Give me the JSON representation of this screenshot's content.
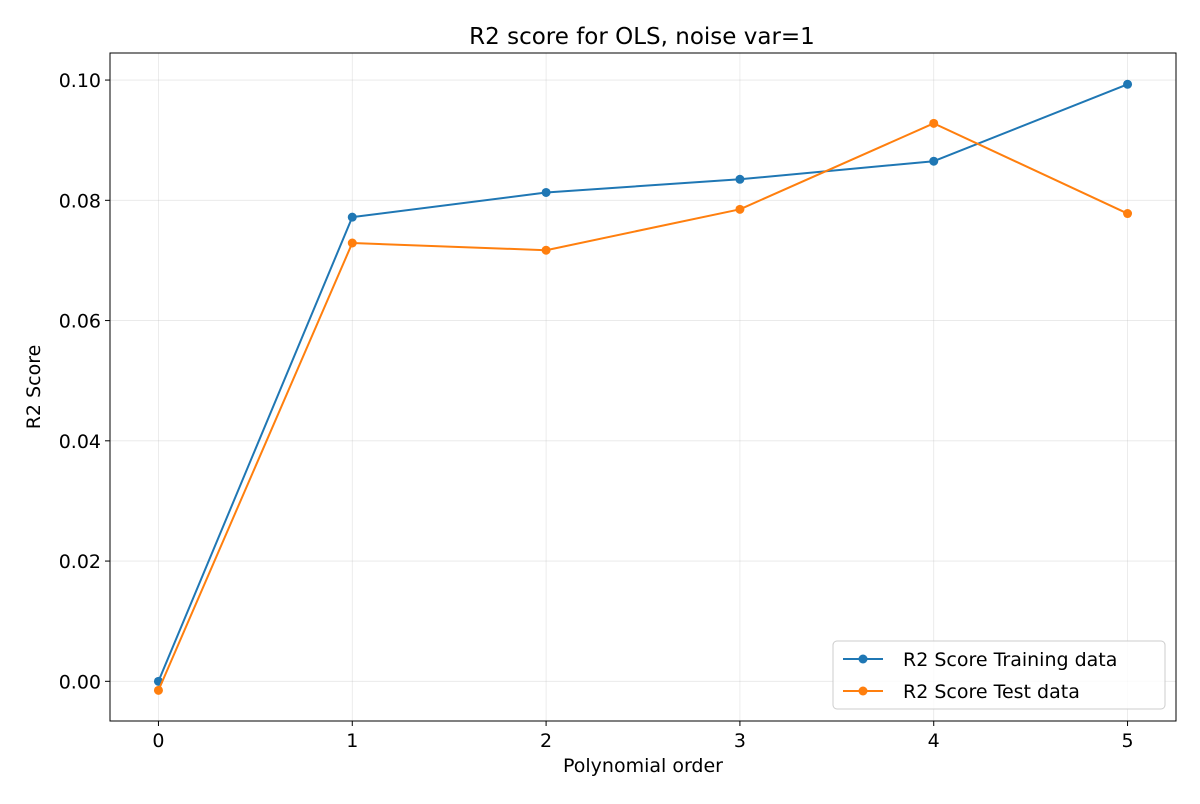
{
  "chart_data": {
    "type": "line",
    "title": "R2 score for OLS, noise var=1",
    "xlabel": "Polynomial order",
    "ylabel": "R2 Score",
    "x": [
      0,
      1,
      2,
      3,
      4,
      5
    ],
    "xlim": [
      -0.25,
      5.25
    ],
    "ylim": [
      -0.0066,
      0.1045
    ],
    "xticks": [
      "0",
      "1",
      "2",
      "3",
      "4",
      "5"
    ],
    "yticks": [
      "0.00",
      "0.02",
      "0.04",
      "0.06",
      "0.08",
      "0.10"
    ],
    "ytick_values": [
      0.0,
      0.02,
      0.04,
      0.06,
      0.08,
      0.1
    ],
    "grid": true,
    "legend_position": "lower-right",
    "series": [
      {
        "name": "R2 Score Training data",
        "color": "#1f77b4",
        "marker": "circle",
        "values": [
          0.0,
          0.0772,
          0.0813,
          0.0835,
          0.0865,
          0.0993
        ]
      },
      {
        "name": "R2 Score Test data",
        "color": "#ff7f0e",
        "marker": "circle",
        "values": [
          -0.0015,
          0.0729,
          0.0717,
          0.0785,
          0.0928,
          0.0778
        ]
      }
    ]
  }
}
